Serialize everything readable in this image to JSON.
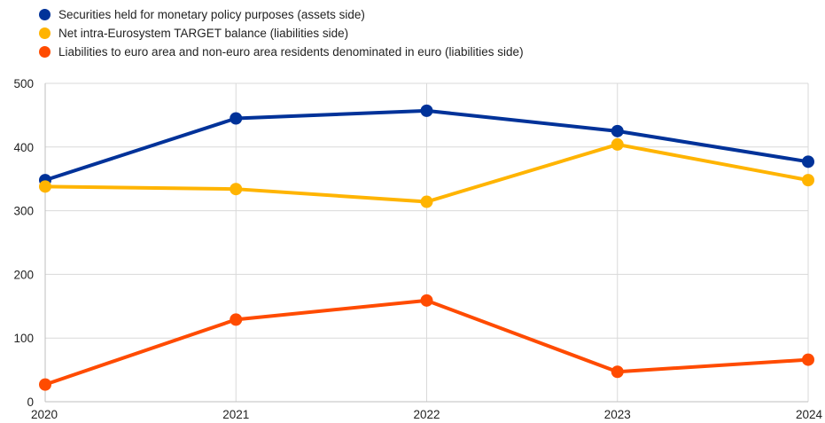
{
  "chart_data": {
    "type": "line",
    "title": "",
    "xlabel": "",
    "ylabel": "",
    "x": [
      "2020",
      "2021",
      "2022",
      "2023",
      "2024"
    ],
    "ylim": [
      0,
      500
    ],
    "yticks": [
      0,
      100,
      200,
      300,
      400,
      500
    ],
    "grid": true,
    "legend_position": "top-left",
    "series": [
      {
        "name": "Securities held for monetary policy purposes (assets side)",
        "color": "#003299",
        "values": [
          348,
          445,
          457,
          425,
          377
        ]
      },
      {
        "name": "Net intra-Eurosystem TARGET balance (liabilities side)",
        "color": "#FFB400",
        "values": [
          338,
          334,
          314,
          404,
          348
        ]
      },
      {
        "name": "Liabilities to euro area and non-euro area residents denominated in euro (liabilities side)",
        "color": "#FF4B00",
        "values": [
          27,
          129,
          159,
          47,
          66
        ]
      }
    ]
  }
}
